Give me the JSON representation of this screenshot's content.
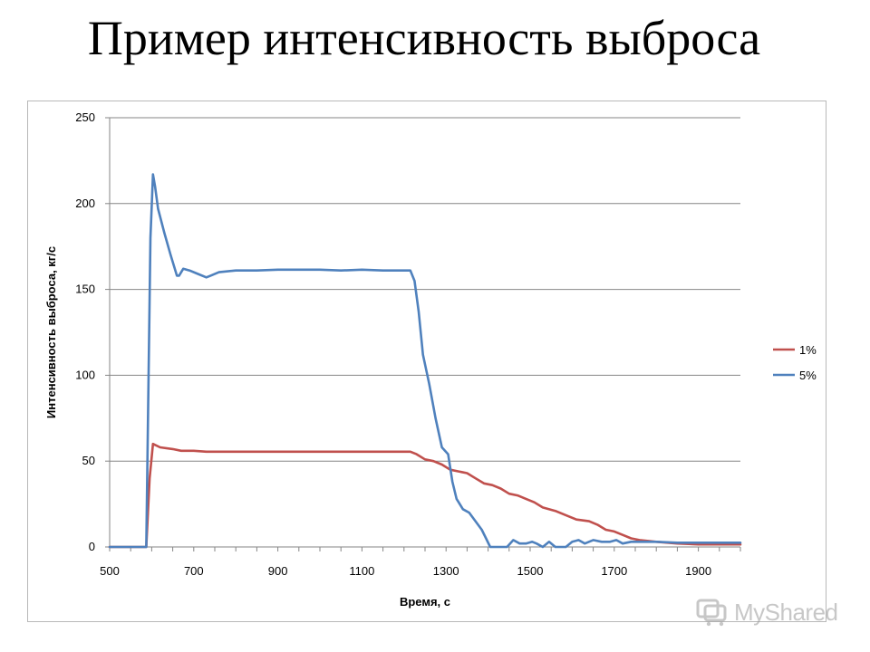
{
  "slide": {
    "title": "Пример интенсивность выброса"
  },
  "watermark": {
    "text": "MyShared"
  },
  "colors": {
    "series_1": "#c0504d",
    "series_5": "#4f81bd",
    "grid": "#868686",
    "frame": "#b8b8b8"
  },
  "chart_data": {
    "type": "line",
    "xlabel": "Время, с",
    "ylabel": "Интенсивность выброса, кг/с",
    "xlim": [
      500,
      2000
    ],
    "ylim": [
      0,
      250
    ],
    "x_ticks": [
      500,
      700,
      900,
      1100,
      1300,
      1500,
      1700,
      1900
    ],
    "y_ticks": [
      0,
      50,
      100,
      150,
      200,
      250
    ],
    "grid": "horizontal",
    "legend": "right",
    "series": [
      {
        "name": "1%",
        "color": "#c0504d",
        "points": [
          [
            500,
            0
          ],
          [
            580,
            0
          ],
          [
            587,
            0
          ],
          [
            595,
            40
          ],
          [
            603,
            60
          ],
          [
            620,
            58
          ],
          [
            650,
            57
          ],
          [
            670,
            56
          ],
          [
            700,
            56
          ],
          [
            730,
            55.5
          ],
          [
            800,
            55.5
          ],
          [
            900,
            55.5
          ],
          [
            1000,
            55.5
          ],
          [
            1100,
            55.5
          ],
          [
            1150,
            55.5
          ],
          [
            1200,
            55.5
          ],
          [
            1215,
            55.5
          ],
          [
            1230,
            54
          ],
          [
            1250,
            51
          ],
          [
            1270,
            50
          ],
          [
            1290,
            48
          ],
          [
            1310,
            45
          ],
          [
            1330,
            44
          ],
          [
            1350,
            43
          ],
          [
            1370,
            40
          ],
          [
            1390,
            37
          ],
          [
            1410,
            36
          ],
          [
            1430,
            34
          ],
          [
            1450,
            31
          ],
          [
            1470,
            30
          ],
          [
            1490,
            28
          ],
          [
            1510,
            26
          ],
          [
            1530,
            23
          ],
          [
            1560,
            21
          ],
          [
            1590,
            18
          ],
          [
            1610,
            16
          ],
          [
            1640,
            15
          ],
          [
            1660,
            13
          ],
          [
            1680,
            10
          ],
          [
            1700,
            9
          ],
          [
            1720,
            7
          ],
          [
            1740,
            5
          ],
          [
            1760,
            4
          ],
          [
            1800,
            3
          ],
          [
            1850,
            2
          ],
          [
            1900,
            1.5
          ],
          [
            1950,
            1.5
          ],
          [
            2000,
            1.5
          ]
        ]
      },
      {
        "name": "5%",
        "color": "#4f81bd",
        "points": [
          [
            500,
            0
          ],
          [
            580,
            0
          ],
          [
            587,
            0
          ],
          [
            597,
            180
          ],
          [
            603,
            217
          ],
          [
            608,
            210
          ],
          [
            615,
            197
          ],
          [
            630,
            183
          ],
          [
            645,
            170
          ],
          [
            660,
            158
          ],
          [
            665,
            158
          ],
          [
            675,
            162
          ],
          [
            690,
            161
          ],
          [
            710,
            159
          ],
          [
            730,
            157
          ],
          [
            740,
            158
          ],
          [
            760,
            160
          ],
          [
            800,
            161
          ],
          [
            850,
            161
          ],
          [
            900,
            161.5
          ],
          [
            950,
            161.5
          ],
          [
            1000,
            161.5
          ],
          [
            1050,
            161
          ],
          [
            1100,
            161.5
          ],
          [
            1150,
            161
          ],
          [
            1200,
            161
          ],
          [
            1215,
            161
          ],
          [
            1225,
            155
          ],
          [
            1235,
            137
          ],
          [
            1245,
            112
          ],
          [
            1260,
            95
          ],
          [
            1275,
            75
          ],
          [
            1290,
            58
          ],
          [
            1305,
            54
          ],
          [
            1315,
            38
          ],
          [
            1325,
            28
          ],
          [
            1340,
            22
          ],
          [
            1355,
            20
          ],
          [
            1370,
            15
          ],
          [
            1385,
            10
          ],
          [
            1395,
            5
          ],
          [
            1405,
            0
          ],
          [
            1420,
            0
          ],
          [
            1445,
            0
          ],
          [
            1460,
            4
          ],
          [
            1475,
            2
          ],
          [
            1490,
            2
          ],
          [
            1505,
            3
          ],
          [
            1515,
            2
          ],
          [
            1530,
            0
          ],
          [
            1545,
            3
          ],
          [
            1560,
            0
          ],
          [
            1585,
            0
          ],
          [
            1600,
            3
          ],
          [
            1615,
            4
          ],
          [
            1630,
            2
          ],
          [
            1650,
            4
          ],
          [
            1670,
            3
          ],
          [
            1690,
            3
          ],
          [
            1705,
            4
          ],
          [
            1720,
            2
          ],
          [
            1740,
            3
          ],
          [
            1760,
            3
          ],
          [
            1800,
            3
          ],
          [
            1850,
            2.5
          ],
          [
            1900,
            2.5
          ],
          [
            1950,
            2.5
          ],
          [
            2000,
            2.5
          ]
        ]
      }
    ]
  }
}
